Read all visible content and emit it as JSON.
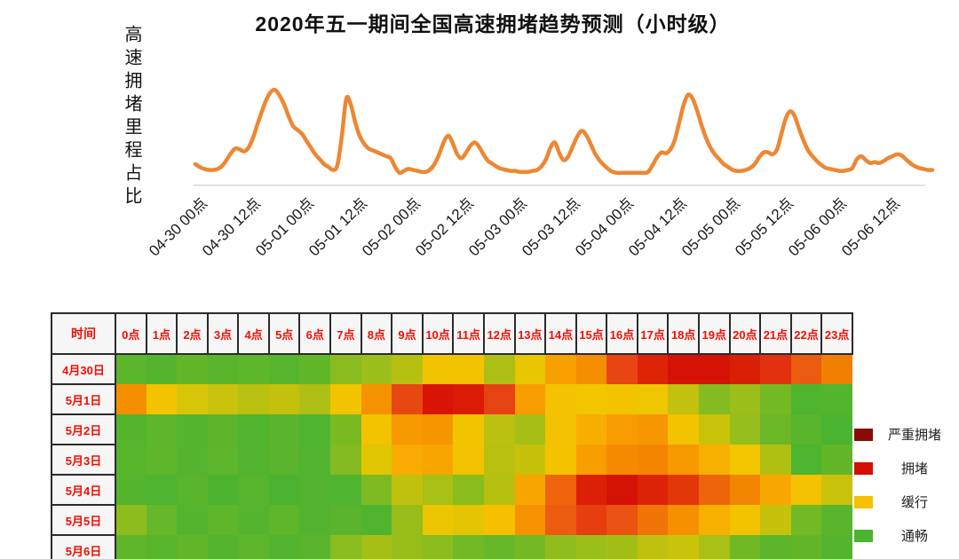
{
  "title": "2020年五一期间全国高速拥堵趋势预测（小时级）",
  "line_chart": {
    "y_axis_label": "高速拥堵里程占比",
    "line_color": "#ED8733",
    "axis_color": "#d9d9d9"
  },
  "heatmap": {
    "corner_label": "时间",
    "col_headers": [
      "0点",
      "1点",
      "2点",
      "3点",
      "4点",
      "5点",
      "6点",
      "7点",
      "8点",
      "9点",
      "10点",
      "11点",
      "12点",
      "13点",
      "14点",
      "15点",
      "16点",
      "17点",
      "18点",
      "19点",
      "20点",
      "21点",
      "22点",
      "23点"
    ],
    "row_labels": [
      "4月30日",
      "5月1日",
      "5月2日",
      "5月3日",
      "5月4日",
      "5月5日",
      "5月6日"
    ],
    "header_text_color": "#f20d00",
    "border_color": "#2b2b2b",
    "header_bg": "#f6f6f6"
  },
  "legend": {
    "items": [
      {
        "label": "严重拥堵",
        "color": "#8B0B04"
      },
      {
        "label": "拥堵",
        "color": "#D50F04"
      },
      {
        "label": "缓行",
        "color": "#F5C200"
      },
      {
        "label": "通畅",
        "color": "#4CB42F"
      }
    ]
  },
  "chart_data": [
    {
      "type": "line",
      "title": "2020年五一期间全国高速拥堵趋势预测（小时级）",
      "ylabel": "高速拥堵里程占比",
      "xlabel": "",
      "x_unit": "hours from 04-30 00:00",
      "x_tick_labels": [
        "04-30 00点",
        "04-30 12点",
        "05-01 00点",
        "05-01 12点",
        "05-02 00点",
        "05-02 12点",
        "05-03 00点",
        "05-03 12点",
        "05-04 00点",
        "05-04 12点",
        "05-05 00点",
        "05-05 12点",
        "05-06 00点",
        "05-06 12点"
      ],
      "x_tick_positions": [
        0,
        12,
        24,
        36,
        48,
        60,
        72,
        84,
        96,
        108,
        120,
        132,
        144,
        156
      ],
      "ylim": [
        0,
        100
      ],
      "grid": false,
      "legend_position": "none",
      "series": [
        {
          "name": "高速拥堵里程占比",
          "x_start": 0,
          "x_step": 1,
          "values": [
            21,
            18,
            16,
            15,
            15,
            16,
            19,
            25,
            32,
            37,
            36,
            34,
            38,
            48,
            62,
            75,
            87,
            95,
            97,
            91,
            82,
            70,
            60,
            56,
            52,
            45,
            38,
            31,
            26,
            21,
            18,
            15,
            20,
            50,
            88,
            82,
            64,
            50,
            42,
            37,
            35,
            33,
            31,
            29,
            27,
            18,
            12,
            14,
            16,
            15,
            14,
            13,
            13,
            16,
            22,
            32,
            44,
            50,
            42,
            31,
            27,
            33,
            40,
            43,
            38,
            30,
            24,
            21,
            18,
            16,
            15,
            14,
            14,
            13,
            13,
            13,
            14,
            15,
            19,
            26,
            38,
            43,
            32,
            25,
            29,
            39,
            49,
            55,
            51,
            42,
            32,
            25,
            20,
            16,
            13,
            12,
            12,
            12,
            12,
            12,
            12,
            12,
            13,
            20,
            28,
            33,
            32,
            36,
            46,
            64,
            82,
            92,
            88,
            76,
            61,
            48,
            38,
            31,
            26,
            21,
            18,
            15,
            14,
            14,
            15,
            17,
            21,
            28,
            33,
            33,
            31,
            36,
            52,
            68,
            75,
            70,
            57,
            45,
            35,
            29,
            24,
            20,
            17,
            16,
            15,
            14,
            14,
            15,
            17,
            26,
            29,
            25,
            22,
            23,
            22,
            24,
            27,
            29,
            31,
            30,
            26,
            22,
            19,
            17,
            16,
            15,
            15
          ]
        }
      ]
    },
    {
      "type": "heatmap",
      "corner_label": "时间",
      "x_labels": [
        "0点",
        "1点",
        "2点",
        "3点",
        "4点",
        "5点",
        "6点",
        "7点",
        "8点",
        "9点",
        "10点",
        "11点",
        "12点",
        "13点",
        "14点",
        "15点",
        "16点",
        "17点",
        "18点",
        "19点",
        "20点",
        "21点",
        "22点",
        "23点"
      ],
      "y_labels": [
        "4月30日",
        "5月1日",
        "5月2日",
        "5月3日",
        "5月4日",
        "5月5日",
        "5月6日"
      ],
      "level_scale": {
        "0": "通畅",
        "1": "缓行",
        "2": "拥堵",
        "3": "严重拥堵"
      },
      "levels": [
        [
          0.2,
          0.2,
          0.2,
          0.2,
          0.2,
          0.2,
          0.2,
          0.6,
          0.8,
          0.9,
          1.1,
          1.1,
          0.8,
          1.0,
          1.5,
          1.6,
          2.1,
          2.5,
          2.8,
          2.8,
          2.6,
          2.3,
          2.0,
          1.7
        ],
        [
          1.6,
          1.1,
          1.0,
          0.9,
          0.9,
          0.9,
          0.8,
          1.1,
          1.6,
          2.1,
          2.7,
          2.6,
          2.2,
          1.5,
          1.1,
          1.1,
          1.1,
          1.0,
          0.9,
          0.6,
          0.7,
          0.5,
          0.3,
          0.2
        ],
        [
          0.2,
          0.2,
          0.2,
          0.2,
          0.2,
          0.2,
          0.1,
          0.6,
          1.1,
          1.5,
          1.5,
          1.1,
          0.9,
          0.8,
          1.1,
          1.4,
          1.5,
          1.5,
          1.1,
          0.9,
          0.7,
          0.4,
          0.2,
          0.1
        ],
        [
          0.2,
          0.2,
          0.2,
          0.2,
          0.2,
          0.2,
          0.1,
          0.6,
          1.0,
          1.3,
          1.3,
          1.1,
          0.9,
          0.9,
          1.1,
          1.5,
          1.6,
          1.6,
          1.5,
          1.3,
          1.1,
          0.8,
          0.3,
          0.2
        ],
        [
          0.2,
          0.1,
          0.2,
          0.1,
          0.2,
          0.1,
          0.2,
          0.2,
          0.5,
          0.9,
          0.8,
          0.6,
          0.8,
          1.5,
          2.0,
          2.5,
          2.8,
          2.5,
          2.1,
          1.9,
          1.6,
          1.5,
          1.1,
          0.9
        ],
        [
          0.6,
          0.3,
          0.2,
          0.2,
          0.2,
          0.2,
          0.2,
          0.2,
          0.1,
          0.7,
          1.0,
          1.0,
          1.2,
          1.6,
          2.0,
          2.1,
          2.0,
          1.7,
          1.6,
          1.3,
          1.1,
          0.9,
          0.4,
          0.2
        ],
        [
          0.2,
          0.2,
          0.2,
          0.2,
          0.2,
          0.2,
          0.2,
          0.6,
          0.8,
          0.7,
          0.6,
          0.4,
          0.3,
          0.4,
          0.6,
          0.7,
          0.8,
          0.9,
          0.9,
          0.8,
          0.4,
          0.2,
          0.2,
          0.2
        ]
      ],
      "cell_colors": [
        [
          "#5cb52b",
          "#55b42d",
          "#64b629",
          "#58b52c",
          "#5eb62b",
          "#57b42d",
          "#62b62a",
          "#8abc1f",
          "#9cbe1a",
          "#b5c011",
          "#f2c400",
          "#f3c300",
          "#adbf14",
          "#e9c602",
          "#f8a000",
          "#f58e00",
          "#e84512",
          "#dd2407",
          "#d41206",
          "#d41206",
          "#da1f07",
          "#e23110",
          "#ea5a10",
          "#f28000"
        ],
        [
          "#f49000",
          "#f3c300",
          "#d8c408",
          "#c8c20c",
          "#b9c010",
          "#c3c10d",
          "#adbf14",
          "#f2c400",
          "#f49200",
          "#e74711",
          "#d81505",
          "#da1b06",
          "#e64314",
          "#f79d00",
          "#f4c200",
          "#f1c500",
          "#f3c300",
          "#eec601",
          "#c2c10d",
          "#84bb21",
          "#9cbe1a",
          "#72b924",
          "#4fb42e",
          "#53b52d"
        ],
        [
          "#54b42d",
          "#5db62b",
          "#53b42d",
          "#5db52b",
          "#51b42e",
          "#5bb52c",
          "#4fb42f",
          "#79ba22",
          "#f3c300",
          "#f79900",
          "#f59500",
          "#f2c400",
          "#bcc00f",
          "#a6bf16",
          "#f4c200",
          "#f8ae00",
          "#f79c00",
          "#f69600",
          "#f3c300",
          "#c9c20b",
          "#95bd1c",
          "#6ab827",
          "#58b52c",
          "#4bb430"
        ],
        [
          "#57b52c",
          "#5fb62a",
          "#55b42d",
          "#5db62b",
          "#52b42e",
          "#5ab52c",
          "#50b42e",
          "#84bb20",
          "#e0c603",
          "#f8ab00",
          "#f8a500",
          "#f4c200",
          "#b9c010",
          "#c6c20c",
          "#f3c300",
          "#f89e00",
          "#f58a00",
          "#f48500",
          "#f79900",
          "#f8b000",
          "#f1c500",
          "#b0c013",
          "#4fb42f",
          "#64b629"
        ],
        [
          "#54b42d",
          "#4fb42f",
          "#58b52c",
          "#4db42f",
          "#56b42d",
          "#4bb330",
          "#52b42e",
          "#4fb42f",
          "#7dba21",
          "#c0c10e",
          "#a8bf15",
          "#8bbc1e",
          "#b5c011",
          "#f8a500",
          "#ef640c",
          "#dc2007",
          "#d41206",
          "#dc2207",
          "#e33709",
          "#ed650b",
          "#f18500",
          "#f8a700",
          "#f4c200",
          "#c9c20b"
        ],
        [
          "#8cbc1e",
          "#66b729",
          "#53b42d",
          "#60b62a",
          "#55b42d",
          "#5eb62b",
          "#52b42e",
          "#5ab52c",
          "#50b42e",
          "#98bd1b",
          "#ecc701",
          "#e3c504",
          "#f6c000",
          "#f69200",
          "#ec5c10",
          "#e63e0e",
          "#ea5311",
          "#f07408",
          "#f59000",
          "#f7b000",
          "#f3c300",
          "#c6c20c",
          "#71b925",
          "#5bb52c"
        ],
        [
          "#5fb62a",
          "#57b52c",
          "#63b629",
          "#55b42d",
          "#5db62b",
          "#52b42e",
          "#58b52c",
          "#88bc1f",
          "#a5bf16",
          "#97bd1b",
          "#8dbc1e",
          "#71b925",
          "#66b729",
          "#73b924",
          "#90bd1d",
          "#9abe1a",
          "#a3bf17",
          "#c0c10e",
          "#c9c20b",
          "#a9bf15",
          "#70b925",
          "#5cb52b",
          "#64b629",
          "#54b42d"
        ]
      ],
      "legend": [
        {
          "label": "严重拥堵",
          "color": "#8B0B04"
        },
        {
          "label": "拥堵",
          "color": "#D50F04"
        },
        {
          "label": "缓行",
          "color": "#F5C200"
        },
        {
          "label": "通畅",
          "color": "#4CB42F"
        }
      ]
    }
  ]
}
